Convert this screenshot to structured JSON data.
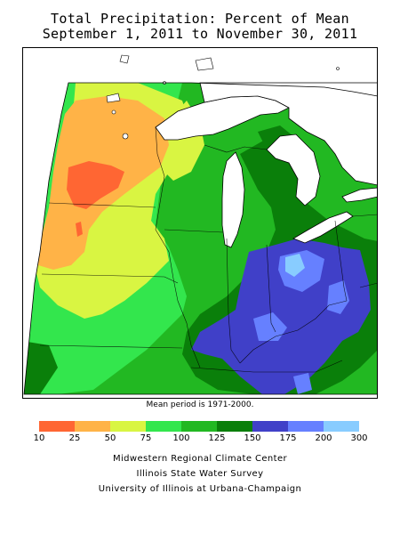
{
  "title": {
    "line1": "Total Precipitation: Percent of Mean",
    "line2": "September 1, 2011 to November 30, 2011"
  },
  "map": {
    "region": "Midwestern United States (Great Lakes region)",
    "lake_color": "#ffffff",
    "outline_color": "#000000"
  },
  "mean_note": "Mean period is 1971-2000.",
  "legend": {
    "ticks": [
      "10",
      "25",
      "50",
      "75",
      "100",
      "125",
      "150",
      "175",
      "200",
      "300"
    ],
    "bins": [
      {
        "range": "10-25",
        "color": "#ff6633"
      },
      {
        "range": "25-50",
        "color": "#ffb347"
      },
      {
        "range": "50-75",
        "color": "#d9f542"
      },
      {
        "range": "75-100",
        "color": "#33e64d"
      },
      {
        "range": "100-125",
        "color": "#22b822"
      },
      {
        "range": "125-150",
        "color": "#0a7f0a"
      },
      {
        "range": "150-175",
        "color": "#4040c8"
      },
      {
        "range": "175-200",
        "color": "#6680ff"
      },
      {
        "range": "200-300",
        "color": "#88ccff"
      }
    ]
  },
  "credits": {
    "line1": "Midwestern Regional Climate Center",
    "line2": "Illinois State Water Survey",
    "line3": "University of Illinois at Urbana-Champaign"
  }
}
